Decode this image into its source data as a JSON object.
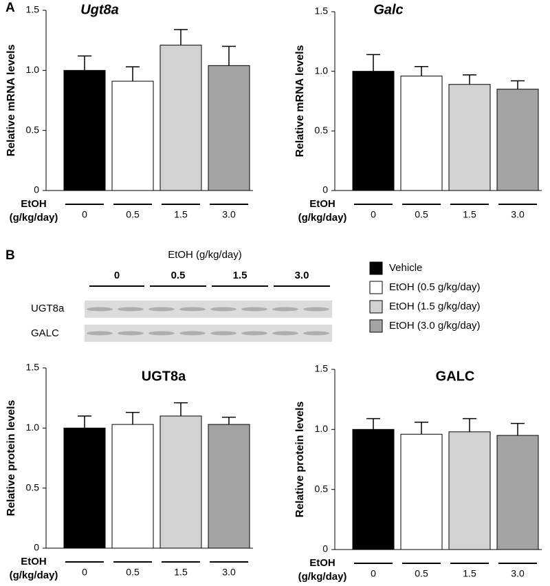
{
  "panels": [
    "A",
    "B"
  ],
  "blot": {
    "title": "EtOH (g/kg/day)",
    "groups": [
      "0",
      "0.5",
      "1.5",
      "3.0"
    ],
    "rows": [
      "UGT8a",
      "GALC"
    ]
  },
  "legend": [
    {
      "name": "Vehicle",
      "color": "#000000"
    },
    {
      "name": "EtOH (0.5  g/kg/day)",
      "color": "#ffffff"
    },
    {
      "name": "EtOH (1.5  g/kg/day)",
      "color": "#d2d2d2"
    },
    {
      "name": "EtOH (3.0  g/kg/day)",
      "color": "#a3a3a3"
    }
  ],
  "chart_data": [
    {
      "type": "bar",
      "title": "Ugt8a",
      "italic_title": true,
      "ylabel": "Relative mRNA levels",
      "xlabel": [
        "EtOH",
        "(g/kg/day)"
      ],
      "categories": [
        "0",
        "0.5",
        "1.5",
        "3.0"
      ],
      "values": [
        1.0,
        0.91,
        1.21,
        1.04
      ],
      "errors": [
        0.12,
        0.12,
        0.13,
        0.16
      ],
      "colors": [
        "#000000",
        "#ffffff",
        "#d2d2d2",
        "#a3a3a3"
      ],
      "ylim": [
        0,
        1.5
      ],
      "yticks": [
        0,
        0.5,
        {
          "value": 1,
          "label": "1.0"
        },
        1.5
      ]
    },
    {
      "type": "bar",
      "title": "Galc",
      "italic_title": true,
      "ylabel": "Relative mRNA levels",
      "xlabel": [
        "EtOH",
        "(g/kg/day)"
      ],
      "categories": [
        "0",
        "0.5",
        "1.5",
        "3.0"
      ],
      "values": [
        1.0,
        0.96,
        0.89,
        0.85
      ],
      "errors": [
        0.14,
        0.08,
        0.08,
        0.07
      ],
      "colors": [
        "#000000",
        "#ffffff",
        "#d2d2d2",
        "#a3a3a3"
      ],
      "ylim": [
        0,
        1.5
      ],
      "yticks": [
        0,
        0.5,
        {
          "value": 1,
          "label": "1.0"
        },
        1.5
      ]
    },
    {
      "type": "bar",
      "title": "UGT8a",
      "italic_title": false,
      "ylabel": "Relative protein levels",
      "xlabel": [
        "EtOH",
        "(g/kg/day)"
      ],
      "categories": [
        "0",
        "0.5",
        "1.5",
        "3.0"
      ],
      "values": [
        1.0,
        1.03,
        1.1,
        1.03
      ],
      "errors": [
        0.1,
        0.1,
        0.11,
        0.06
      ],
      "colors": [
        "#000000",
        "#ffffff",
        "#d2d2d2",
        "#a3a3a3"
      ],
      "ylim": [
        0,
        1.5
      ],
      "yticks": [
        0,
        0.5,
        {
          "value": 1,
          "label": "1.0"
        },
        1.5
      ]
    },
    {
      "type": "bar",
      "title": "GALC",
      "italic_title": false,
      "ylabel": "Relative protein levels",
      "xlabel": [
        "EtOH",
        "(g/kg/day)"
      ],
      "categories": [
        "0",
        "0.5",
        "1.5",
        "3.0"
      ],
      "values": [
        1.0,
        0.96,
        0.98,
        0.95
      ],
      "errors": [
        0.09,
        0.1,
        0.11,
        0.1
      ],
      "colors": [
        "#000000",
        "#ffffff",
        "#d2d2d2",
        "#a3a3a3"
      ],
      "ylim": [
        0,
        1.5
      ],
      "yticks": [
        0,
        0.5,
        {
          "value": 1,
          "label": "1.0"
        },
        1.5
      ]
    }
  ]
}
